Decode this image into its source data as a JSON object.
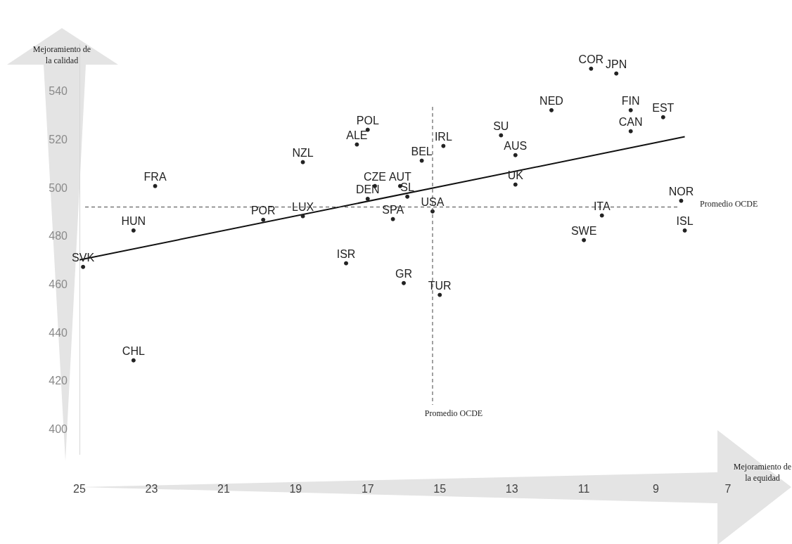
{
  "chart_data": {
    "type": "scatter",
    "xlabel": "Mejoramiento de la equidad",
    "ylabel": "Mejoramiento de la calidad",
    "xlim": [
      25,
      7
    ],
    "xticks": [
      25,
      23,
      21,
      19,
      17,
      15,
      13,
      11,
      9,
      7
    ],
    "ylim": [
      390,
      560
    ],
    "yticks": [
      400,
      420,
      440,
      460,
      480,
      500,
      520,
      540
    ],
    "grid": false,
    "legend": false,
    "series": [
      {
        "type": "scatter",
        "color": "#222222",
        "marker": "circle",
        "x": [
          10.8,
          10.1,
          11.9,
          9.7,
          8.8,
          9.7,
          13.3,
          17.0,
          17.3,
          14.9,
          12.9,
          15.5,
          18.8,
          22.9,
          12.9,
          16.8,
          16.1,
          17.0,
          15.9,
          8.3,
          15.2,
          10.5,
          18.8,
          19.9,
          16.3,
          23.5,
          8.2,
          11.0,
          24.9,
          17.6,
          16.0,
          15.0,
          23.5
        ],
        "values": [
          549.6,
          547.6,
          532.4,
          532.4,
          529.5,
          523.7,
          522,
          524.3,
          518.2,
          517.6,
          513.8,
          511.5,
          510.9,
          501,
          501.6,
          501,
          501,
          495.7,
          496.6,
          494.9,
          490.5,
          488.8,
          488.5,
          487,
          487.3,
          482.6,
          482.6,
          478.6,
          467.5,
          469,
          460.8,
          455.9,
          428.8
        ],
        "value_labels": [
          "COR",
          "JPN",
          "NED",
          "FIN",
          "EST",
          "CAN",
          "SU",
          "POL",
          "ALE",
          "IRL",
          "AUS",
          "BEL",
          "NZL",
          "FRA",
          "UK",
          "CZE",
          "AUT",
          "DEN",
          "SL",
          "NOR",
          "USA",
          "ITA",
          "LUX",
          "POR",
          "SPA",
          "HUN",
          "ISL",
          "SWE",
          "SVK",
          "ISR",
          "GR",
          "TUR",
          "CHL"
        ]
      },
      {
        "type": "line",
        "color": "#111111",
        "marker": "none",
        "x": [
          25,
          8.2
        ],
        "values": [
          470.4,
          521.4
        ]
      }
    ],
    "ref_lines": [
      {
        "axis": "x",
        "value": 15.2,
        "label": "Promedio OCDE",
        "color": "#444444",
        "line_style": "dashed"
      },
      {
        "axis": "y",
        "value": 492.3,
        "label": "Promedio OCDE",
        "color": "#444444",
        "line_style": "dashed"
      }
    ]
  }
}
